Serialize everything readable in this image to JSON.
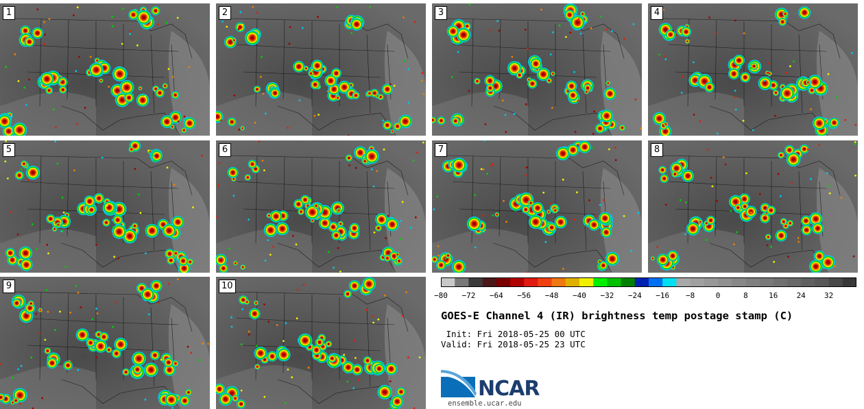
{
  "panels": [
    {
      "label": "1"
    },
    {
      "label": "2"
    },
    {
      "label": "3"
    },
    {
      "label": "4"
    },
    {
      "label": "5"
    },
    {
      "label": "6"
    },
    {
      "label": "7"
    },
    {
      "label": "8"
    },
    {
      "label": "9"
    },
    {
      "label": "10"
    }
  ],
  "colorbar": {
    "ticks": [
      "−80",
      "−72",
      "−64",
      "−56",
      "−48",
      "−40",
      "−32",
      "−24",
      "−16",
      "−8",
      "0",
      "8",
      "16",
      "24",
      "32"
    ],
    "min": -80,
    "max": 40,
    "step": 4,
    "colors": [
      "#c8c8c8",
      "#787878",
      "#3a3a3a",
      "#4a1818",
      "#7a0000",
      "#b00000",
      "#e01a10",
      "#f04010",
      "#f07810",
      "#e0b000",
      "#f0f000",
      "#00f000",
      "#00c000",
      "#008000",
      "#0020b0",
      "#0070f0",
      "#00e0f0",
      "#a8a8a8",
      "#a0a0a0",
      "#989898",
      "#909090",
      "#888888",
      "#808080",
      "#787878",
      "#707070",
      "#686868",
      "#606060",
      "#585858",
      "#484848",
      "#383838"
    ]
  },
  "title": "GOES-E Channel 4 (IR) brightness temp postage stamp (C)",
  "init": " Init: Fri 2018-05-25 00 UTC",
  "valid": "Valid: Fri 2018-05-25 23 UTC",
  "logo": {
    "text": "NCAR",
    "site": "ensemble.ucar.edu"
  }
}
